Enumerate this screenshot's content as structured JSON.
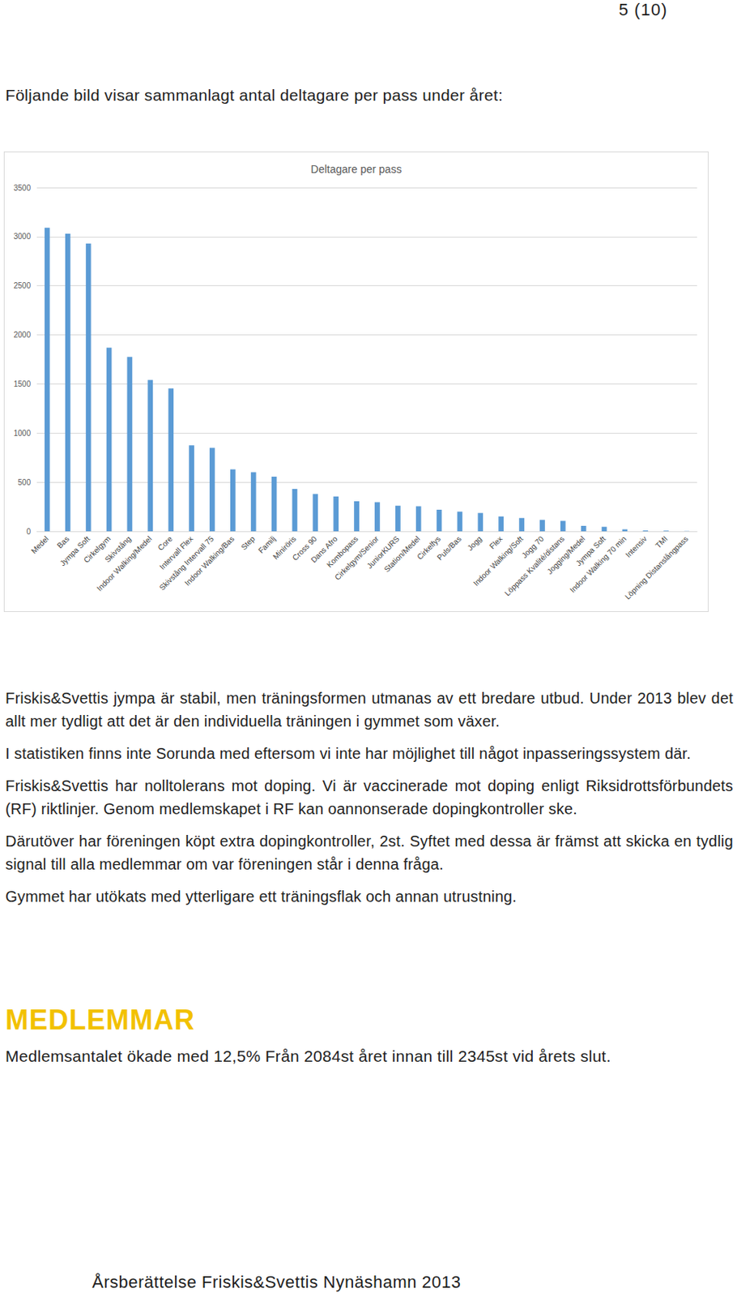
{
  "header": {
    "page": "5 (10)"
  },
  "intro": "Följande bild visar sammanlagt antal deltagare per pass under året:",
  "chart_data": {
    "type": "bar",
    "title": "Deltagare per pass",
    "categories": [
      "Medel",
      "Bas",
      "Jympa Soft",
      "Cirkelgym",
      "Skivstång",
      "Indoor Walking/Medel",
      "Core",
      "Intervall Flex",
      "Skivstång Intervall 75",
      "Indoor Walking/Bas",
      "Step",
      "Familj",
      "Miniröris",
      "Cross 90",
      "Dans Afro",
      "Kombopass",
      "Cirkelgym/Senior",
      "JuniorKURS",
      "Station/Medel",
      "Cirkelfys",
      "Puls/Bas",
      "Jogg",
      "Flex",
      "Indoor Walking/Soft",
      "Jogg 70",
      "Löppass Kvalité/distans",
      "Jogging/Medel",
      "Jympa Soft",
      "Indoor Walking 70 min",
      "Intensiv",
      "TMI",
      "Löpning Distanslångpass"
    ],
    "values": [
      3090,
      3030,
      2930,
      1870,
      1775,
      1540,
      1455,
      875,
      850,
      630,
      600,
      555,
      430,
      380,
      355,
      305,
      295,
      260,
      255,
      220,
      200,
      185,
      150,
      135,
      115,
      105,
      55,
      45,
      20,
      8,
      5,
      2
    ],
    "color": "#5b9bd5",
    "ylim": [
      0,
      3500
    ],
    "yticks": [
      0,
      500,
      1000,
      1500,
      2000,
      2500,
      3000,
      3500
    ],
    "grid": true
  },
  "paragraphs": [
    "Friskis&Svettis jympa är stabil, men träningsformen utmanas av ett bredare utbud. Under 2013 blev det allt mer tydligt att det är den individuella träningen i gymmet som växer.",
    "I statistiken finns inte Sorunda med eftersom vi inte har möjlighet till något inpasseringssystem där.",
    "Friskis&Svettis har nolltolerans mot doping. Vi är vaccinerade mot doping enligt Riksidrottsförbundets (RF) riktlinjer. Genom medlemskapet i RF kan oannonserade dopingkontroller ske.",
    "Därutöver har föreningen köpt extra dopingkontroller, 2st. Syftet med dessa är främst att skicka en tydlig signal till alla medlemmar om var föreningen står i denna fråga.",
    "Gymmet har utökats med ytterligare ett träningsflak och annan utrustning."
  ],
  "section": {
    "heading": "MEDLEMMAR",
    "text": "Medlemsantalet ökade med 12,5% Från 2084st året innan till 2345st vid årets slut."
  },
  "footer": "Årsberättelse Friskis&Svettis Nynäshamn 2013"
}
